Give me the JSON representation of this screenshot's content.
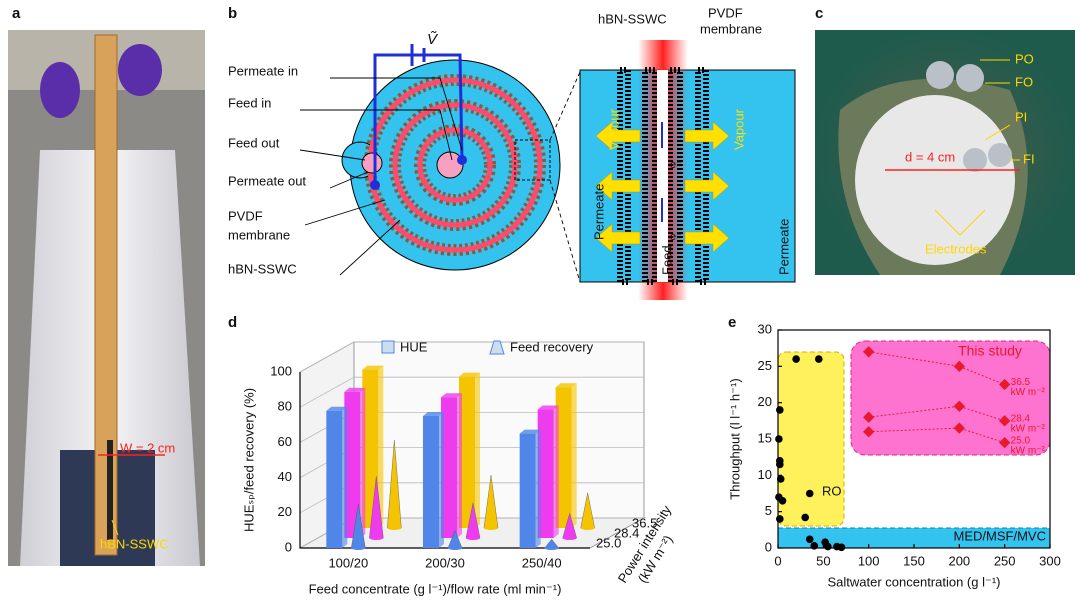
{
  "panels": {
    "a": {
      "label": "a",
      "width_label": "W = 2 cm",
      "material": "hBN-SSWC"
    },
    "b": {
      "label": "b",
      "voltage": "Ṽ",
      "left_labels": [
        "Permeate in",
        "Feed in",
        "Feed out",
        "Permeate out"
      ],
      "pvdf": [
        "PVDF",
        "membrane"
      ],
      "hbn": "hBN-SSWC",
      "inset": {
        "hbn": "hBN-SSWC",
        "pvdf": [
          "PVDF",
          "membrane"
        ],
        "permeate": "Permeate",
        "vapour": "Vapour",
        "feed": "Feed",
        "electron": "e⁻"
      }
    },
    "c": {
      "label": "c",
      "ports": [
        "PO",
        "FO",
        "PI",
        "FI"
      ],
      "diameter": "d = 4 cm",
      "electrodes": "Electrodes"
    },
    "d": {
      "label": "d"
    },
    "e": {
      "label": "e"
    }
  },
  "chart_data": [
    {
      "type": "bar3d",
      "categories": [
        "100/20",
        "200/30",
        "250/40"
      ],
      "xlabel": "Feed concentrate (g l⁻¹)/flow rate (ml min⁻¹)",
      "ylabel": "HUEₛₚ/feed recovery (%)",
      "zlabel": [
        "Power intensity",
        "(kW m⁻²)"
      ],
      "zticks": [
        {
          "value": 25,
          "label": "25.0"
        },
        28.4,
        36.5
      ],
      "colors": [
        "#4f86e8",
        "#ee3bee",
        "#f5c400"
      ],
      "series": [
        {
          "name": "HUE",
          "values": [
            [
              78,
              75,
              65
            ],
            [
              83,
              80,
              73
            ],
            [
              90,
              86,
              80
            ]
          ]
        },
        {
          "name": "Feed recovery",
          "values": [
            [
              25,
              10,
              5
            ],
            [
              35,
              20,
              14
            ],
            [
              50,
              30,
              20
            ]
          ]
        }
      ],
      "ylim": [
        0,
        100
      ],
      "yticks": [
        0,
        20,
        40,
        60,
        80,
        100
      ],
      "grid": true
    },
    {
      "type": "scatter",
      "xlabel": "Saltwater concentration (g l⁻¹)",
      "ylabel": "Throughput (l l⁻¹ h⁻¹)",
      "xlim": [
        0,
        300
      ],
      "xticks": [
        0,
        50,
        100,
        150,
        200,
        250,
        300
      ],
      "ylim": [
        0,
        30
      ],
      "yticks": [
        0,
        5,
        10,
        15,
        20,
        25,
        30
      ],
      "annotations": [
        "This study",
        "MED/MSF/MVC"
      ],
      "series": [
        {
          "name": "RO",
          "color": "#000000",
          "x": [
            2,
            1,
            2,
            2,
            3,
            1,
            5,
            2,
            20,
            45,
            35,
            30,
            35,
            40,
            55,
            52,
            65,
            70
          ],
          "values": [
            19,
            15,
            12,
            11.5,
            9.5,
            7,
            6.5,
            4,
            26,
            26,
            7.5,
            4.2,
            1.2,
            0.3,
            0.2,
            0.8,
            0.2,
            0.1
          ]
        },
        {
          "name": "36.5",
          "unit": "kW m⁻²",
          "color": "#e8192c",
          "x": [
            100,
            200,
            250
          ],
          "values": [
            27,
            25,
            22.5
          ]
        },
        {
          "name": "28.4",
          "unit": "kW m⁻²",
          "color": "#e8192c",
          "x": [
            100,
            200,
            250
          ],
          "values": [
            18,
            19.5,
            17.5
          ]
        },
        {
          "name": "25.0",
          "unit": "kW m⁻²",
          "color": "#e8192c",
          "x": [
            100,
            200,
            250
          ],
          "values": [
            16,
            16.5,
            14.5
          ]
        }
      ]
    }
  ]
}
